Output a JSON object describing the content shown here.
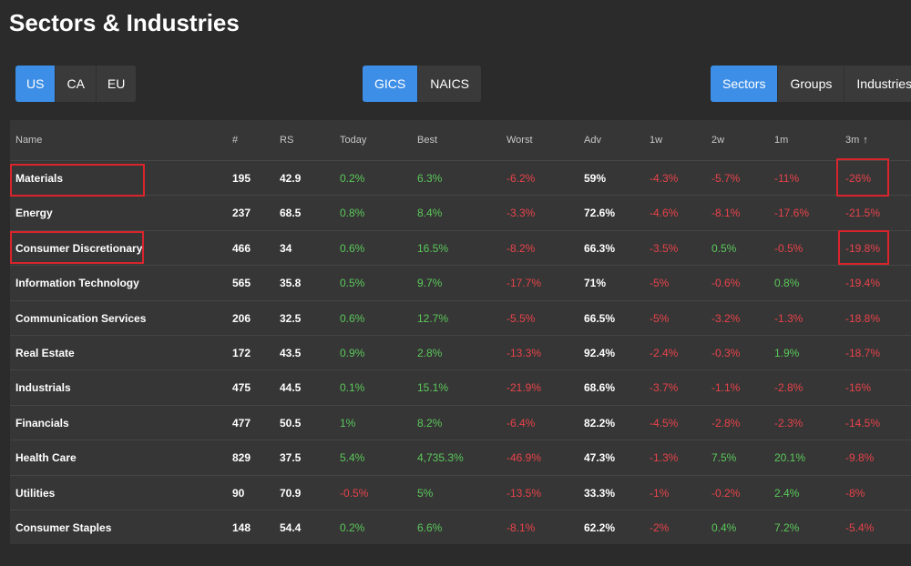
{
  "page": {
    "title": "Sectors & Industries"
  },
  "region_toggle": {
    "options": [
      "US",
      "CA",
      "EU"
    ],
    "selected": "US"
  },
  "classification_toggle": {
    "options": [
      "GICS",
      "NAICS"
    ],
    "selected": "GICS"
  },
  "view_toggle": {
    "options": [
      "Sectors",
      "Groups",
      "Industries"
    ],
    "selected": "Sectors"
  },
  "table": {
    "columns": [
      "Name",
      "#",
      "RS",
      "Today",
      "Best",
      "Worst",
      "Adv",
      "1w",
      "2w",
      "1m",
      "3m"
    ],
    "sort_column": "3m",
    "sort_icon": "arrow-up-icon",
    "rows": [
      {
        "name": "Materials",
        "count": "195",
        "rs": "42.9",
        "today": "0.2%",
        "best": "6.3%",
        "worst": "-6.2%",
        "adv": "59%",
        "w1": "-4.3%",
        "w2": "-5.7%",
        "m1": "-11%",
        "m3": "-26%"
      },
      {
        "name": "Energy",
        "count": "237",
        "rs": "68.5",
        "today": "0.8%",
        "best": "8.4%",
        "worst": "-3.3%",
        "adv": "72.6%",
        "w1": "-4.6%",
        "w2": "-8.1%",
        "m1": "-17.6%",
        "m3": "-21.5%"
      },
      {
        "name": "Consumer Discretionary",
        "count": "466",
        "rs": "34",
        "today": "0.6%",
        "best": "16.5%",
        "worst": "-8.2%",
        "adv": "66.3%",
        "w1": "-3.5%",
        "w2": "0.5%",
        "m1": "-0.5%",
        "m3": "-19.8%"
      },
      {
        "name": "Information Technology",
        "count": "565",
        "rs": "35.8",
        "today": "0.5%",
        "best": "9.7%",
        "worst": "-17.7%",
        "adv": "71%",
        "w1": "-5%",
        "w2": "-0.6%",
        "m1": "0.8%",
        "m3": "-19.4%"
      },
      {
        "name": "Communication Services",
        "count": "206",
        "rs": "32.5",
        "today": "0.6%",
        "best": "12.7%",
        "worst": "-5.5%",
        "adv": "66.5%",
        "w1": "-5%",
        "w2": "-3.2%",
        "m1": "-1.3%",
        "m3": "-18.8%"
      },
      {
        "name": "Real Estate",
        "count": "172",
        "rs": "43.5",
        "today": "0.9%",
        "best": "2.8%",
        "worst": "-13.3%",
        "adv": "92.4%",
        "w1": "-2.4%",
        "w2": "-0.3%",
        "m1": "1.9%",
        "m3": "-18.7%"
      },
      {
        "name": "Industrials",
        "count": "475",
        "rs": "44.5",
        "today": "0.1%",
        "best": "15.1%",
        "worst": "-21.9%",
        "adv": "68.6%",
        "w1": "-3.7%",
        "w2": "-1.1%",
        "m1": "-2.8%",
        "m3": "-16%"
      },
      {
        "name": "Financials",
        "count": "477",
        "rs": "50.5",
        "today": "1%",
        "best": "8.2%",
        "worst": "-6.4%",
        "adv": "82.2%",
        "w1": "-4.5%",
        "w2": "-2.8%",
        "m1": "-2.3%",
        "m3": "-14.5%"
      },
      {
        "name": "Health Care",
        "count": "829",
        "rs": "37.5",
        "today": "5.4%",
        "best": "4,735.3%",
        "worst": "-46.9%",
        "adv": "47.3%",
        "w1": "-1.3%",
        "w2": "7.5%",
        "m1": "20.1%",
        "m3": "-9.8%"
      },
      {
        "name": "Utilities",
        "count": "90",
        "rs": "70.9",
        "today": "-0.5%",
        "best": "5%",
        "worst": "-13.5%",
        "adv": "33.3%",
        "w1": "-1%",
        "w2": "-0.2%",
        "m1": "2.4%",
        "m3": "-8%"
      },
      {
        "name": "Consumer Staples",
        "count": "148",
        "rs": "54.4",
        "today": "0.2%",
        "best": "6.6%",
        "worst": "-8.1%",
        "adv": "62.2%",
        "w1": "-2%",
        "w2": "0.4%",
        "m1": "7.2%",
        "m3": "-5.4%"
      }
    ]
  },
  "colors": {
    "background": "#2b2b2b",
    "table_background": "#363636",
    "active_button": "#3d8ee6",
    "positive": "#5bc85b",
    "negative": "#e8434a",
    "highlight": "#d9242c"
  }
}
